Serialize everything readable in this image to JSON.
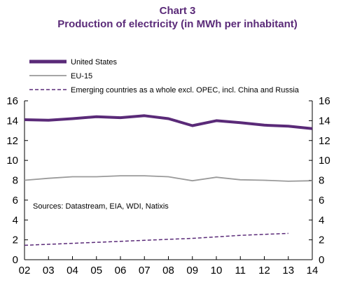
{
  "chart_data": {
    "type": "line",
    "title": "Chart 3",
    "subtitle": "Production of electricity (in MWh per inhabitant)",
    "source": "Sources: Datastream, EIA, WDI, Natixis",
    "categories": [
      "02",
      "03",
      "04",
      "05",
      "06",
      "07",
      "08",
      "09",
      "10",
      "11",
      "12",
      "13",
      "14"
    ],
    "ylim": [
      0,
      16
    ],
    "yticks": [
      "0",
      "2",
      "4",
      "6",
      "8",
      "10",
      "12",
      "14",
      "16"
    ],
    "grid": false,
    "legend_position": "top-left",
    "series": [
      {
        "name": "United States",
        "color": "#5a2a78",
        "style": "thick-solid",
        "values": [
          14.1,
          14.05,
          14.2,
          14.4,
          14.3,
          14.5,
          14.2,
          13.5,
          14.0,
          13.8,
          13.55,
          13.45,
          13.2
        ]
      },
      {
        "name": "EU-15",
        "color": "#9a9a9a",
        "style": "solid",
        "values": [
          8.0,
          8.2,
          8.35,
          8.35,
          8.45,
          8.45,
          8.35,
          7.95,
          8.3,
          8.05,
          8.0,
          7.9,
          7.95
        ]
      },
      {
        "name": "Emerging countries as a whole excl. OPEC, incl. China and Russia",
        "color": "#5a2a78",
        "style": "dashed",
        "values": [
          1.45,
          1.55,
          1.65,
          1.75,
          1.85,
          1.95,
          2.05,
          2.15,
          2.3,
          2.45,
          2.55,
          2.65,
          null
        ]
      }
    ]
  }
}
